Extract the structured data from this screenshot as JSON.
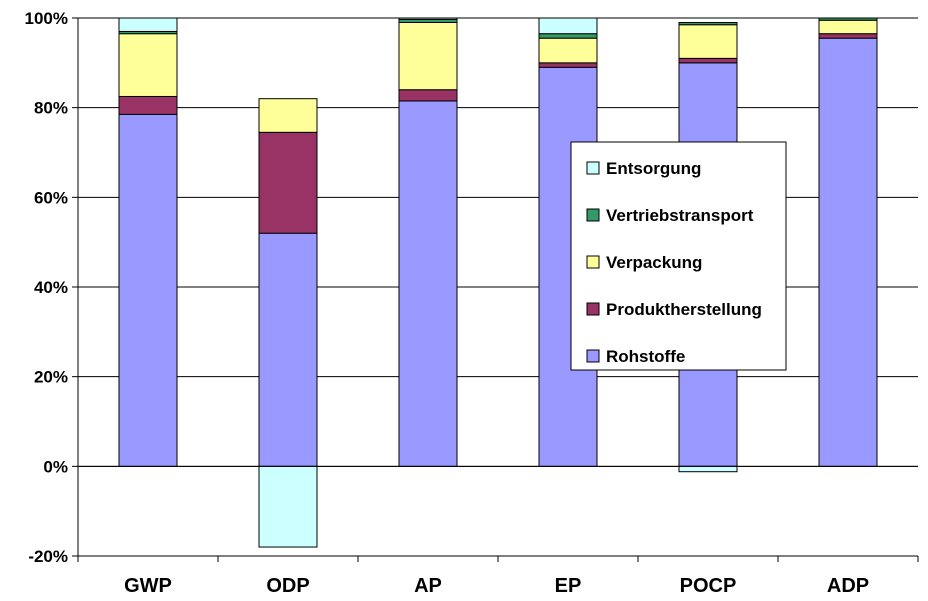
{
  "chart_data": {
    "type": "bar",
    "stacked": true,
    "categories": [
      "GWP",
      "ODP",
      "AP",
      "EP",
      "POCP",
      "ADP"
    ],
    "y_tick_labels": [
      "-20%",
      "0%",
      "20%",
      "40%",
      "60%",
      "80%",
      "100%"
    ],
    "ylim": [
      -20,
      100
    ],
    "grid": true,
    "legend_position": "center-right",
    "series": [
      {
        "name": "Rohstoffe",
        "color": "#9999ff",
        "values": [
          78.5,
          52,
          81.5,
          89,
          90,
          95.5
        ]
      },
      {
        "name": "Produktherstellung",
        "color": "#993366",
        "values": [
          4,
          22.5,
          2.5,
          1,
          1,
          1
        ]
      },
      {
        "name": "Verpackung",
        "color": "#ffff99",
        "values": [
          14,
          7.5,
          15,
          5.5,
          7.5,
          3
        ]
      },
      {
        "name": "Vertriebstransport",
        "color": "#339966",
        "values": [
          0.5,
          0,
          0.7,
          1,
          0.5,
          0.5
        ]
      },
      {
        "name": "Entsorgung",
        "color": "#ccffff",
        "values": [
          3,
          -18,
          0.3,
          3.5,
          -1.2,
          0
        ]
      }
    ],
    "legend_order": [
      "Entsorgung",
      "Vertriebstransport",
      "Verpackung",
      "Produktherstellung",
      "Rohstoffe"
    ]
  }
}
